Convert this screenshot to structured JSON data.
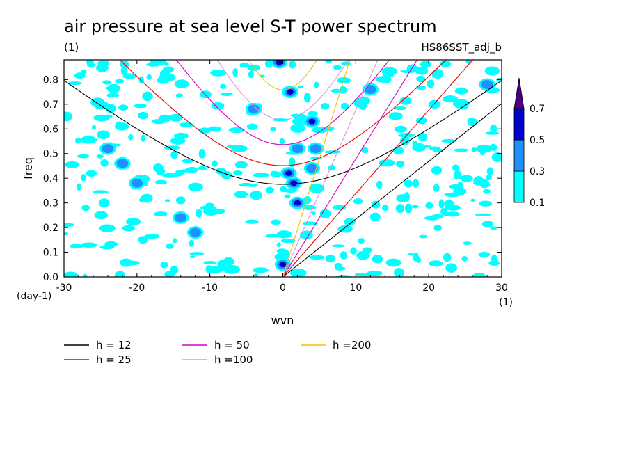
{
  "chart_data": {
    "type": "contour",
    "title": "air pressure at sea level S-T power spectrum",
    "subtitle_left": "(1)",
    "subtitle_right": "HS86SST_adj_b",
    "xlabel": "wvn",
    "ylabel": "freq",
    "x_unit": "(1)",
    "y_unit": "(day-1)",
    "xlim": [
      -30,
      30
    ],
    "ylim": [
      0,
      0.88
    ],
    "x_ticks": [
      -30,
      -20,
      -10,
      0,
      10,
      20,
      30
    ],
    "x_tick_labels": [
      "-30",
      "-20",
      "-10",
      "0",
      "10",
      "20",
      "30"
    ],
    "y_ticks": [
      0,
      0.1,
      0.2,
      0.3,
      0.4,
      0.5,
      0.6,
      0.7,
      0.8
    ],
    "y_tick_labels": [
      "0.0",
      "0.1",
      "0.2",
      "0.3",
      "0.4",
      "0.5",
      "0.6",
      "0.7",
      "0.8"
    ],
    "colorbar": {
      "levels": [
        0.1,
        0.3,
        0.5,
        0.7
      ],
      "labels": [
        "0.1",
        "0.3",
        "0.5",
        "0.7"
      ],
      "colors": [
        "#00ffff",
        "#1e90ff",
        "#0000cd",
        "#4b0082"
      ]
    },
    "dispersion_curves": [
      {
        "name": "h = 12",
        "h": 12,
        "color": "#000000"
      },
      {
        "name": "h = 25",
        "h": 25,
        "color": "#e00000"
      },
      {
        "name": "h = 50",
        "h": 50,
        "color": "#d000c0"
      },
      {
        "name": "h =100",
        "h": 100,
        "color": "#e090e0"
      },
      {
        "name": "h =200",
        "h": 200,
        "color": "#f0c000"
      }
    ],
    "contour_patches": [
      {
        "x": 0.0,
        "y": 0.05,
        "level": 2
      },
      {
        "x": 1.0,
        "y": 0.75,
        "level": 2
      },
      {
        "x": 0.8,
        "y": 0.42,
        "level": 2
      },
      {
        "x": 1.5,
        "y": 0.38,
        "level": 3
      },
      {
        "x": 4.0,
        "y": 0.63,
        "level": 2
      },
      {
        "x": 2.0,
        "y": 0.3,
        "level": 2
      },
      {
        "x": 4.5,
        "y": 0.52,
        "level": 1
      },
      {
        "x": -20.0,
        "y": 0.38,
        "level": 1
      },
      {
        "x": -24.0,
        "y": 0.52,
        "level": 1
      },
      {
        "x": -14.0,
        "y": 0.24,
        "level": 1
      },
      {
        "x": 12.0,
        "y": 0.76,
        "level": 1
      },
      {
        "x": -12.0,
        "y": 0.18,
        "level": 1
      },
      {
        "x": -4.0,
        "y": 0.68,
        "level": 1
      },
      {
        "x": 2.0,
        "y": 0.52,
        "level": 1
      },
      {
        "x": 4.0,
        "y": 0.44,
        "level": 1
      },
      {
        "x": -0.5,
        "y": 0.87,
        "level": 2
      },
      {
        "x": -22.0,
        "y": 0.46,
        "level": 1
      },
      {
        "x": 28.0,
        "y": 0.78,
        "level": 1
      }
    ]
  },
  "legend": {
    "items": [
      {
        "label": "h = 12",
        "color": "#000000"
      },
      {
        "label": "h = 25",
        "color": "#e00000"
      },
      {
        "label": "h = 50",
        "color": "#d000c0"
      },
      {
        "label": "h =100",
        "color": "#e090e0"
      },
      {
        "label": "h =200",
        "color": "#f0c000"
      }
    ]
  }
}
